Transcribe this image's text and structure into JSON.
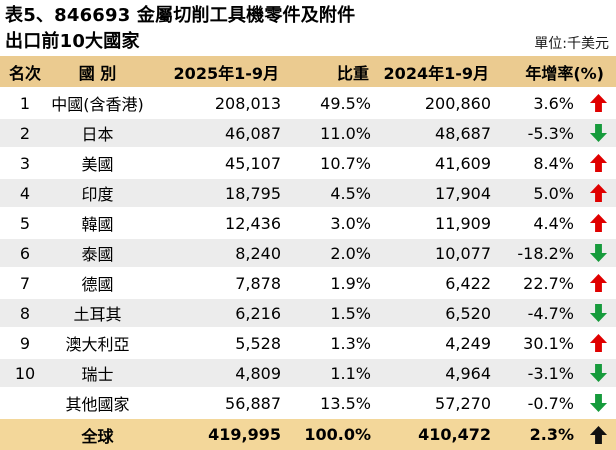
{
  "title": {
    "line1": "表5、846693 金屬切削工具機零件及附件",
    "line2": "出口前10大國家",
    "unit": "單位:千美元"
  },
  "table": {
    "headers": {
      "rank": "名次",
      "country": "國 別",
      "p2025": "2025年1-9月",
      "share": "比重",
      "p2024": "2024年1-9月",
      "yoy": "年增率(%)"
    },
    "rows": [
      {
        "rank": "1",
        "country": "中國(含香港)",
        "v2025": "208,013",
        "share": "49.5%",
        "v2024": "200,860",
        "yoy": "3.6%",
        "trend": "up",
        "trend_color": "red"
      },
      {
        "rank": "2",
        "country": "日本",
        "v2025": "46,087",
        "share": "11.0%",
        "v2024": "48,687",
        "yoy": "-5.3%",
        "trend": "down",
        "trend_color": "green"
      },
      {
        "rank": "3",
        "country": "美國",
        "v2025": "45,107",
        "share": "10.7%",
        "v2024": "41,609",
        "yoy": "8.4%",
        "trend": "up",
        "trend_color": "red"
      },
      {
        "rank": "4",
        "country": "印度",
        "v2025": "18,795",
        "share": "4.5%",
        "v2024": "17,904",
        "yoy": "5.0%",
        "trend": "up",
        "trend_color": "red"
      },
      {
        "rank": "5",
        "country": "韓國",
        "v2025": "12,436",
        "share": "3.0%",
        "v2024": "11,909",
        "yoy": "4.4%",
        "trend": "up",
        "trend_color": "red"
      },
      {
        "rank": "6",
        "country": "泰國",
        "v2025": "8,240",
        "share": "2.0%",
        "v2024": "10,077",
        "yoy": "-18.2%",
        "trend": "down",
        "trend_color": "green"
      },
      {
        "rank": "7",
        "country": "德國",
        "v2025": "7,878",
        "share": "1.9%",
        "v2024": "6,422",
        "yoy": "22.7%",
        "trend": "up",
        "trend_color": "red"
      },
      {
        "rank": "8",
        "country": "土耳其",
        "v2025": "6,216",
        "share": "1.5%",
        "v2024": "6,520",
        "yoy": "-4.7%",
        "trend": "down",
        "trend_color": "green"
      },
      {
        "rank": "9",
        "country": "澳大利亞",
        "v2025": "5,528",
        "share": "1.3%",
        "v2024": "4,249",
        "yoy": "30.1%",
        "trend": "up",
        "trend_color": "red"
      },
      {
        "rank": "10",
        "country": "瑞士",
        "v2025": "4,809",
        "share": "1.1%",
        "v2024": "4,964",
        "yoy": "-3.1%",
        "trend": "down",
        "trend_color": "green"
      },
      {
        "rank": "",
        "country": "其他國家",
        "v2025": "56,887",
        "share": "13.5%",
        "v2024": "57,270",
        "yoy": "-0.7%",
        "trend": "down",
        "trend_color": "green"
      },
      {
        "rank": "",
        "country": "全球",
        "v2025": "419,995",
        "share": "100.0%",
        "v2024": "410,472",
        "yoy": "2.3%",
        "trend": "up",
        "trend_color": "black",
        "is_total": true
      }
    ]
  },
  "colors": {
    "header_bg": "#ebcb90",
    "total_bg": "#f3d79a",
    "row_alt_bg": "#ececec",
    "arrow_red": "#e00000",
    "arrow_green": "#169b3c",
    "arrow_black": "#111111"
  },
  "chart_data": {
    "type": "table",
    "title": "表5、846693 金屬切削工具機零件及附件 出口前10大國家",
    "unit": "千美元",
    "columns": [
      "名次",
      "國 別",
      "2025年1-9月",
      "比重",
      "2024年1-9月",
      "年增率(%)"
    ],
    "rows": [
      [
        "1",
        "中國(含香港)",
        208013,
        "49.5%",
        200860,
        "3.6%"
      ],
      [
        "2",
        "日本",
        46087,
        "11.0%",
        48687,
        "-5.3%"
      ],
      [
        "3",
        "美國",
        45107,
        "10.7%",
        41609,
        "8.4%"
      ],
      [
        "4",
        "印度",
        18795,
        "4.5%",
        17904,
        "5.0%"
      ],
      [
        "5",
        "韓國",
        12436,
        "3.0%",
        11909,
        "4.4%"
      ],
      [
        "6",
        "泰國",
        8240,
        "2.0%",
        10077,
        "-18.2%"
      ],
      [
        "7",
        "德國",
        7878,
        "1.9%",
        6422,
        "22.7%"
      ],
      [
        "8",
        "土耳其",
        6216,
        "1.5%",
        6520,
        "-4.7%"
      ],
      [
        "9",
        "澳大利亞",
        5528,
        "1.3%",
        4249,
        "30.1%"
      ],
      [
        "10",
        "瑞士",
        4809,
        "1.1%",
        4964,
        "-3.1%"
      ],
      [
        "",
        "其他國家",
        56887,
        "13.5%",
        57270,
        "-0.7%"
      ],
      [
        "",
        "全球",
        419995,
        "100.0%",
        410472,
        "2.3%"
      ]
    ]
  }
}
